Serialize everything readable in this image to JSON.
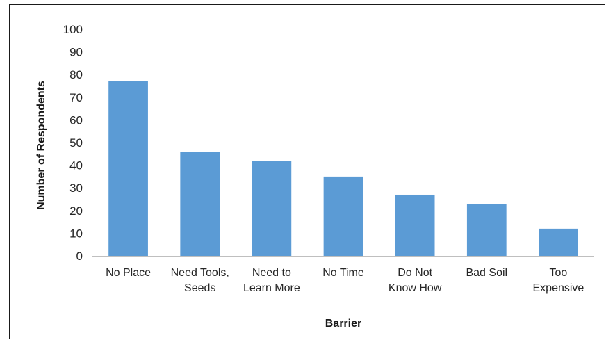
{
  "chart_data": {
    "type": "bar",
    "categories": [
      [
        "No Place"
      ],
      [
        "Need Tools,",
        "Seeds"
      ],
      [
        "Need to",
        "Learn More"
      ],
      [
        "No Time"
      ],
      [
        "Do Not",
        "Know How"
      ],
      [
        "Bad Soil"
      ],
      [
        "Too",
        "Expensive"
      ]
    ],
    "values": [
      77,
      46,
      42,
      35,
      27,
      23,
      12
    ],
    "xlabel": "Barrier",
    "ylabel": "Number of Respondents",
    "ylim": [
      0,
      100
    ],
    "yticks": [
      0,
      10,
      20,
      30,
      40,
      50,
      60,
      70,
      80,
      90,
      100
    ],
    "grid": false,
    "bar_color": "#5b9bd5",
    "axis_color": "#bfbfbf"
  }
}
